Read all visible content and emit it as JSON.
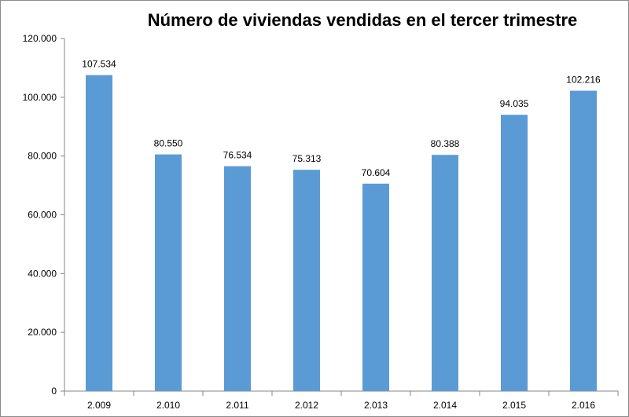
{
  "chart_data": {
    "type": "bar",
    "title": "Número de viviendas vendidas en el tercer trimestre",
    "xlabel": "",
    "ylabel": "",
    "categories": [
      "2.009",
      "2.010",
      "2.011",
      "2.012",
      "2.013",
      "2.014",
      "2.015",
      "2.016"
    ],
    "values": [
      107534,
      80550,
      76534,
      75313,
      70604,
      80388,
      94035,
      102216
    ],
    "value_labels": [
      "107.534",
      "80.550",
      "76.534",
      "75.313",
      "70.604",
      "80.388",
      "94.035",
      "102.216"
    ],
    "ylim": [
      0,
      120000
    ],
    "yticks": [
      0,
      20000,
      40000,
      60000,
      80000,
      100000,
      120000
    ],
    "ytick_labels": [
      "0",
      "20.000",
      "40.000",
      "60.000",
      "80.000",
      "100.000",
      "120.000"
    ],
    "grid": false,
    "legend": "none",
    "bar_color": "#5b9bd5"
  }
}
